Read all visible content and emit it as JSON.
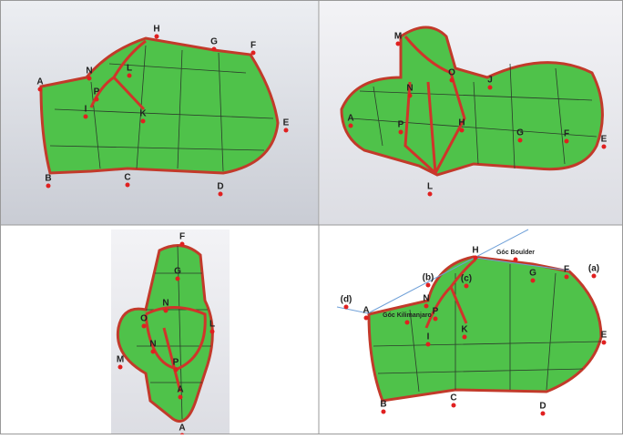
{
  "panels": [
    {
      "labels": [
        "A",
        "B",
        "C",
        "D",
        "E",
        "F",
        "G",
        "H",
        "I",
        "K",
        "L",
        "N",
        "P"
      ]
    },
    {
      "labels": [
        "M",
        "N",
        "O",
        "J",
        "A",
        "P",
        "H",
        "G",
        "F",
        "E",
        "L"
      ]
    },
    {
      "labels": [
        "F",
        "G",
        "N",
        "O",
        "L",
        "N",
        "M",
        "P",
        "A",
        "A"
      ]
    },
    {
      "labels": [
        "H",
        "Góc Boulder",
        "(b)",
        "(c)",
        "G",
        "F",
        "(a)",
        "(d)",
        "A",
        "Góc Kilimanjaro",
        "N",
        "P",
        "I",
        "K",
        "E",
        "B",
        "C",
        "D"
      ]
    }
  ]
}
